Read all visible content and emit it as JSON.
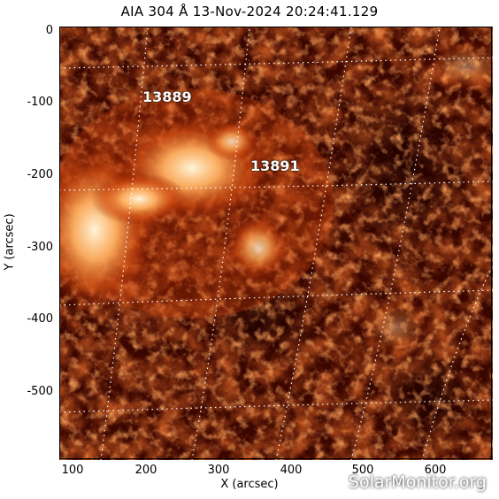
{
  "title": "AIA 304 Å 13-Nov-2024 20:24:41.129",
  "axes": {
    "xlabel": "X (arcsec)",
    "ylabel": "Y (arcsec)",
    "xticks": [
      "100",
      "200",
      "300",
      "400",
      "500",
      "600"
    ],
    "yticks": [
      "0",
      "-100",
      "-200",
      "-300",
      "-400",
      "-500"
    ]
  },
  "regions": [
    {
      "number": "13889"
    },
    {
      "number": "13891"
    }
  ],
  "credit": "SolarMonitor.org",
  "colors": {
    "background": "#2a0000",
    "mid": "#a32400",
    "bright": "#ffd7a0",
    "grid": "#ffffff"
  }
}
